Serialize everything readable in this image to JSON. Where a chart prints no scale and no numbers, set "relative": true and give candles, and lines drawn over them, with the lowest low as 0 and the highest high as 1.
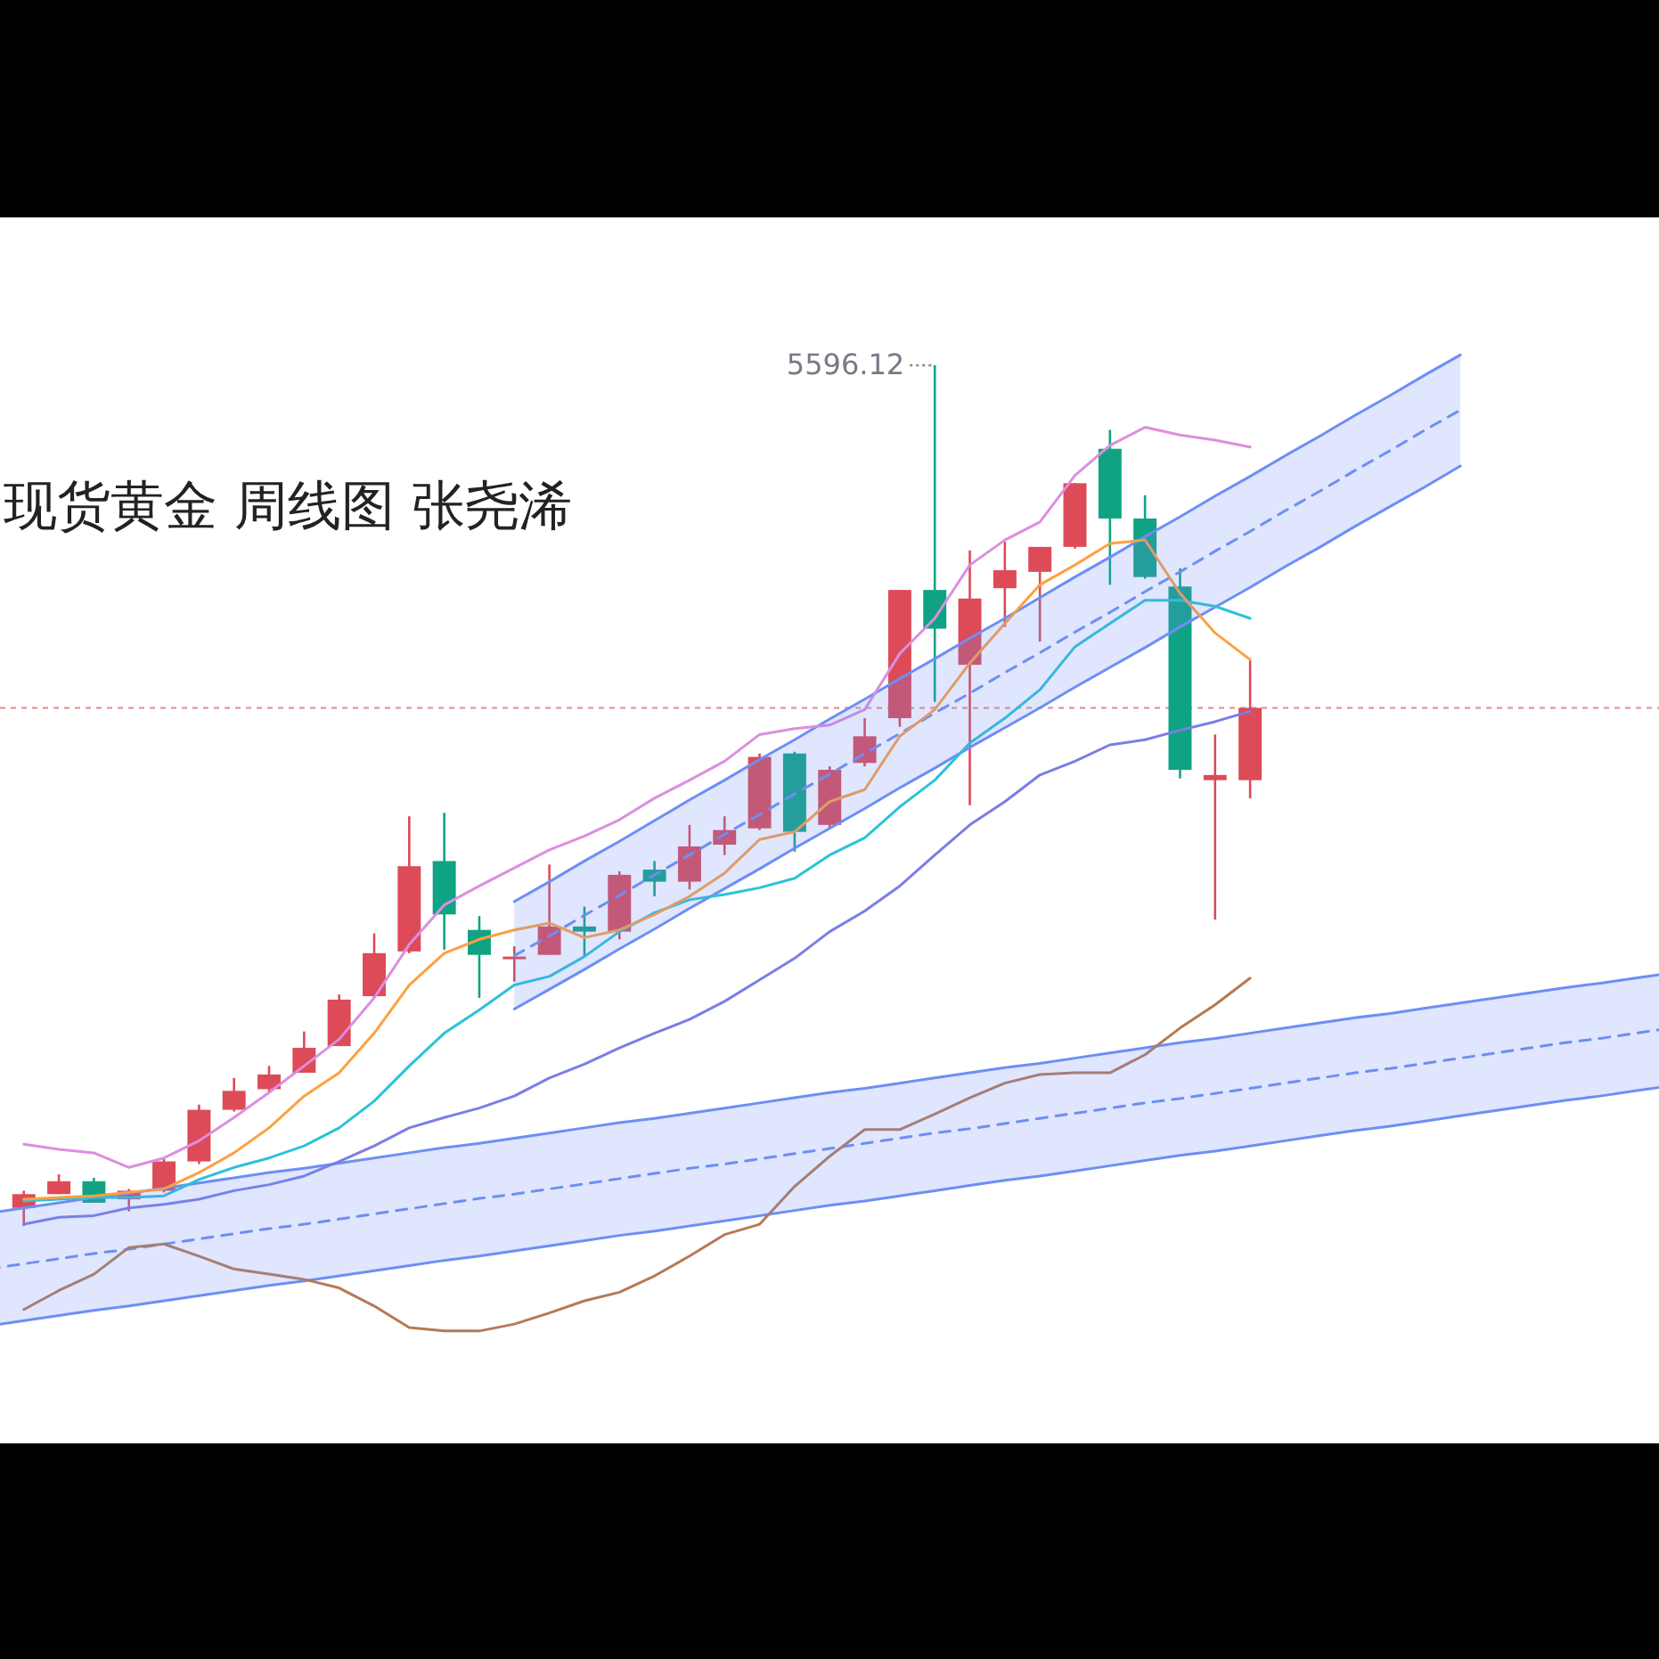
{
  "chart_data": {
    "type": "candlestick",
    "title": "现货黄金 周线图 张尧浠",
    "relative": true,
    "categories": [
      null,
      null,
      null,
      null,
      null,
      null,
      null,
      null,
      null,
      null,
      null,
      null,
      null,
      null,
      null,
      null,
      null,
      null,
      null,
      null,
      null,
      null,
      null,
      null,
      null,
      null,
      null,
      null,
      null,
      null,
      null,
      null,
      null,
      null,
      null,
      null,
      null,
      null,
      null,
      null,
      null,
      null,
      null,
      null,
      null,
      null,
      null,
      null,
      null
    ],
    "ohlc": [
      null,
      [
        0.021,
        0.041,
        0,
        0.037
      ],
      [
        0.037,
        0.06,
        0.037,
        0.052
      ],
      [
        0.052,
        0.056,
        0.027,
        0.027
      ],
      [
        0.031,
        0.043,
        0.017,
        0.041
      ],
      [
        0.041,
        0.079,
        0.039,
        0.075
      ],
      [
        0.075,
        0.141,
        0.072,
        0.135
      ],
      [
        0.135,
        0.172,
        0.133,
        0.157
      ],
      [
        0.159,
        0.186,
        0.155,
        0.176
      ],
      [
        0.178,
        0.226,
        0.178,
        0.207
      ],
      [
        0.209,
        0.269,
        0.209,
        0.263
      ],
      [
        0.267,
        0.34,
        0.265,
        0.317
      ],
      [
        0.319,
        0.476,
        0.317,
        0.418
      ],
      [
        0.424,
        0.48,
        0.321,
        0.362
      ],
      [
        0.344,
        0.36,
        0.265,
        0.315
      ],
      [
        0.311,
        0.325,
        0.284,
        0.313
      ],
      [
        0.315,
        0.42,
        0.315,
        0.348
      ],
      [
        0.348,
        0.371,
        0.313,
        0.342
      ],
      [
        0.342,
        0.412,
        0.333,
        0.408
      ],
      [
        0.414,
        0.424,
        0.383,
        0.4
      ],
      [
        0.4,
        0.466,
        0.391,
        0.441
      ],
      [
        0.443,
        0.476,
        0.431,
        0.46
      ],
      [
        0.462,
        0.549,
        0.46,
        0.545
      ],
      [
        0.549,
        0.551,
        0.435,
        0.458
      ],
      [
        0.466,
        0.534,
        0.462,
        0.53
      ],
      [
        0.538,
        0.59,
        0.534,
        0.569
      ],
      [
        0.59,
        0.739,
        0.58,
        0.739
      ],
      [
        0.739,
        1,
        0.609,
        0.694
      ],
      [
        0.652,
        0.785,
        0.489,
        0.729
      ],
      [
        0.741,
        0.795,
        0.696,
        0.762
      ],
      [
        0.76,
        0.789,
        0.679,
        0.789
      ],
      [
        0.789,
        0.863,
        0.787,
        0.863
      ],
      [
        0.903,
        0.925,
        0.745,
        0.822
      ],
      [
        0.822,
        0.849,
        0.752,
        0.754
      ],
      [
        0.743,
        0.764,
        0.52,
        0.53
      ],
      [
        0.518,
        0.571,
        0.356,
        0.524
      ],
      [
        0.518,
        0.658,
        0.497,
        0.602
      ],
      null,
      null,
      null,
      null,
      null,
      null,
      null,
      null,
      null,
      null,
      null,
      null
    ],
    "colors": [
      null,
      "#dc4b57",
      "#dc4b57",
      "#10a383",
      "#dc4b57",
      "#dc4b57",
      "#dc4b57",
      "#dc4b57",
      "#dc4b57",
      "#dc4b57",
      "#dc4b57",
      "#dc4b57",
      "#dc4b57",
      "#10a383",
      "#10a383",
      "#dc4b57",
      "#dc4b57",
      "#10a383",
      "#dc4b57",
      "#10a383",
      "#dc4b57",
      "#dc4b57",
      "#dc4b57",
      "#10a383",
      "#dc4b57",
      "#dc4b57",
      "#dc4b57",
      "#10a383",
      "#dc4b57",
      "#dc4b57",
      "#dc4b57",
      "#dc4b57",
      "#10a383",
      "#10a383",
      "#10a383",
      "#dc4b57",
      "#dc4b57",
      null,
      null,
      null,
      null,
      null,
      null,
      null,
      null,
      null,
      null,
      null,
      null
    ],
    "series": [
      {
        "type": "line",
        "color": "#6d8ff5",
        "line_style": "dashed",
        "values": [
          -0.05,
          -0.044,
          -0.038,
          -0.032,
          -0.027,
          -0.021,
          -0.015,
          -0.009,
          -0.003,
          0.002,
          0.008,
          0.014,
          0.02,
          0.026,
          0.032,
          0.037,
          0.043,
          0.049,
          0.055,
          0.061,
          0.067,
          0.072,
          0.078,
          0.084,
          0.09,
          0.096,
          0.102,
          0.108,
          0.113,
          0.119,
          0.125,
          0.131,
          0.137,
          0.143,
          0.148,
          0.154,
          0.16,
          0.166,
          0.172,
          0.178,
          0.183,
          0.189,
          0.195,
          0.201,
          0.207,
          0.213,
          0.218,
          0.224,
          0.23
        ]
      },
      {
        "type": "line",
        "color": "#6d8ff5",
        "values": [
          -0.116,
          -0.11,
          -0.104,
          -0.098,
          -0.093,
          -0.087,
          -0.081,
          -0.075,
          -0.069,
          -0.064,
          -0.058,
          -0.052,
          -0.046,
          -0.04,
          -0.035,
          -0.029,
          -0.023,
          -0.017,
          -0.011,
          -0.006,
          0.0,
          0.006,
          0.012,
          0.018,
          0.024,
          0.029,
          0.035,
          0.041,
          0.047,
          0.053,
          0.058,
          0.064,
          0.07,
          0.076,
          0.082,
          0.087,
          0.093,
          0.099,
          0.105,
          0.111,
          0.116,
          0.122,
          0.128,
          0.134,
          0.14,
          0.146,
          0.151,
          0.157,
          0.163
        ]
      },
      {
        "type": "line",
        "color": "#6d8ff5",
        "values": [
          0.015,
          0.021,
          0.027,
          0.033,
          0.038,
          0.044,
          0.05,
          0.056,
          0.062,
          0.067,
          0.073,
          0.079,
          0.085,
          0.091,
          0.096,
          0.102,
          0.108,
          0.114,
          0.12,
          0.125,
          0.131,
          0.137,
          0.143,
          0.149,
          0.155,
          0.16,
          0.166,
          0.172,
          0.178,
          0.184,
          0.189,
          0.195,
          0.201,
          0.207,
          0.213,
          0.218,
          0.224,
          0.23,
          0.236,
          0.242,
          0.247,
          0.253,
          0.259,
          0.265,
          0.271,
          0.277,
          0.282,
          0.288,
          0.294
        ]
      },
      {
        "type": "line",
        "color": "#6d8ff5",
        "line_style": "dashed",
        "values": [
          null,
          null,
          null,
          null,
          null,
          null,
          null,
          null,
          null,
          null,
          null,
          null,
          null,
          null,
          null,
          0.314,
          0.337,
          0.361,
          0.384,
          0.408,
          0.431,
          0.455,
          0.478,
          0.502,
          0.525,
          0.549,
          0.572,
          0.596,
          0.619,
          0.643,
          0.666,
          0.69,
          0.713,
          0.737,
          0.76,
          0.784,
          0.807,
          0.831,
          0.854,
          0.878,
          0.901,
          0.925,
          0.948,
          null,
          null,
          null,
          null,
          null,
          null
        ]
      },
      {
        "type": "line",
        "color": "#6d8ff5",
        "values": [
          null,
          null,
          null,
          null,
          null,
          null,
          null,
          null,
          null,
          null,
          null,
          null,
          null,
          null,
          null,
          0.252,
          0.275,
          0.298,
          0.322,
          0.345,
          0.369,
          0.392,
          0.415,
          0.439,
          0.462,
          0.485,
          0.509,
          0.532,
          0.556,
          0.579,
          0.602,
          0.626,
          0.649,
          0.672,
          0.696,
          0.719,
          0.742,
          0.766,
          0.789,
          0.813,
          0.836,
          0.859,
          0.883,
          null,
          null,
          null,
          null,
          null,
          null
        ]
      },
      {
        "type": "line",
        "color": "#6d8ff5",
        "values": [
          null,
          null,
          null,
          null,
          null,
          null,
          null,
          null,
          null,
          null,
          null,
          null,
          null,
          null,
          null,
          0.377,
          0.4,
          0.424,
          0.447,
          0.471,
          0.495,
          0.518,
          0.542,
          0.565,
          0.589,
          0.612,
          0.636,
          0.659,
          0.683,
          0.706,
          0.73,
          0.754,
          0.777,
          0.801,
          0.824,
          0.848,
          0.871,
          0.895,
          0.918,
          0.942,
          0.965,
          0.989,
          1.012,
          null,
          null,
          null,
          null,
          null,
          null
        ]
      },
      {
        "type": "line",
        "color": "#b57a53",
        "values": [
          null,
          -0.097,
          -0.075,
          -0.056,
          -0.025,
          -0.021,
          -0.035,
          -0.05,
          -0.056,
          -0.062,
          -0.072,
          -0.093,
          -0.118,
          -0.122,
          -0.122,
          -0.114,
          -0.101,
          -0.087,
          -0.077,
          -0.058,
          -0.035,
          -0.01,
          0.002,
          0.046,
          0.081,
          0.112,
          0.112,
          0.13,
          0.149,
          0.166,
          0.176,
          0.178,
          0.178,
          0.199,
          0.23,
          0.257,
          0.288,
          null,
          null,
          null,
          null,
          null,
          null,
          null,
          null,
          null,
          null,
          null,
          null
        ]
      },
      {
        "type": "line",
        "color": "#7a7ee6",
        "values": [
          null,
          0.002,
          0.01,
          0.012,
          0.021,
          0.025,
          0.031,
          0.041,
          0.048,
          0.058,
          0.075,
          0.093,
          0.114,
          0.126,
          0.137,
          0.151,
          0.172,
          0.188,
          0.207,
          0.224,
          0.24,
          0.261,
          0.286,
          0.311,
          0.342,
          0.366,
          0.395,
          0.431,
          0.466,
          0.493,
          0.524,
          0.54,
          0.559,
          0.565,
          0.576,
          0.586,
          0.598,
          null,
          null,
          null,
          null,
          null,
          null,
          null,
          null,
          null,
          null,
          null,
          null
        ]
      },
      {
        "type": "line",
        "color": "#2bc2d8",
        "values": [
          null,
          0.029,
          0.031,
          0.033,
          0.033,
          0.035,
          0.054,
          0.068,
          0.079,
          0.093,
          0.114,
          0.145,
          0.186,
          0.224,
          0.251,
          0.28,
          0.29,
          0.313,
          0.342,
          0.364,
          0.379,
          0.385,
          0.393,
          0.404,
          0.431,
          0.451,
          0.487,
          0.518,
          0.561,
          0.59,
          0.623,
          0.673,
          0.7,
          0.727,
          0.727,
          0.72,
          0.706,
          null,
          null,
          null,
          null,
          null,
          null,
          null,
          null,
          null,
          null,
          null,
          null
        ]
      },
      {
        "type": "line",
        "color": "#ffa040",
        "values": [
          null,
          0.031,
          0.033,
          0.035,
          0.039,
          0.043,
          0.062,
          0.085,
          0.114,
          0.151,
          0.178,
          0.224,
          0.28,
          0.317,
          0.333,
          0.344,
          0.352,
          0.335,
          0.344,
          0.362,
          0.383,
          0.41,
          0.449,
          0.458,
          0.493,
          0.507,
          0.569,
          0.6,
          0.654,
          0.7,
          0.745,
          0.768,
          0.793,
          0.797,
          0.735,
          0.689,
          0.658,
          null,
          null,
          null,
          null,
          null,
          null,
          null,
          null,
          null,
          null,
          null,
          null
        ]
      },
      {
        "type": "line",
        "color": "#dc8ee0",
        "values": [
          null,
          0.095,
          0.089,
          0.085,
          0.068,
          0.079,
          0.099,
          0.126,
          0.155,
          0.186,
          0.217,
          0.265,
          0.327,
          0.373,
          0.395,
          0.416,
          0.437,
          0.453,
          0.472,
          0.497,
          0.518,
          0.54,
          0.571,
          0.578,
          0.582,
          0.6,
          0.665,
          0.706,
          0.768,
          0.797,
          0.818,
          0.872,
          0.907,
          0.928,
          0.919,
          0.913,
          0.905,
          null,
          null,
          null,
          null,
          null,
          null,
          null,
          null,
          null,
          null,
          null,
          null
        ]
      }
    ],
    "ref_lines": [
      {
        "axis": "y",
        "value": 0.602,
        "color": "#e88a8a",
        "line_style": "dashed"
      }
    ],
    "annotations": [
      "5596.12"
    ]
  }
}
